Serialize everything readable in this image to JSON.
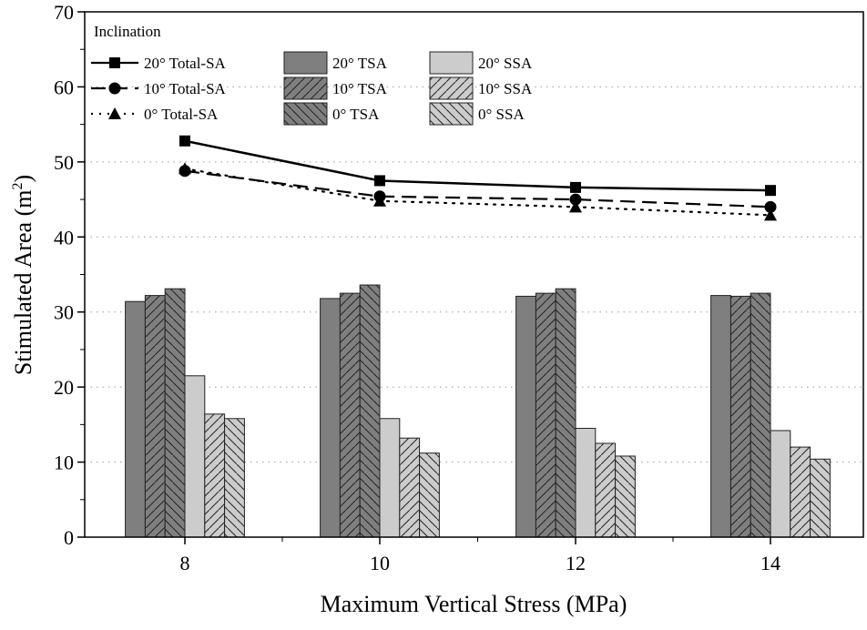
{
  "chart_data": {
    "type": "bar+line",
    "xlabel": "Maximum Vertical Stress (MPa)",
    "ylabel": "Stimulated Area (m",
    "ylabel_sup": "2",
    "ylabel_close": ")",
    "ylim": [
      0,
      70
    ],
    "yticks": [
      "0",
      "10",
      "20",
      "30",
      "40",
      "50",
      "60",
      "70"
    ],
    "categories": [
      "8",
      "10",
      "12",
      "14"
    ],
    "grid": "horizontal dotted",
    "legend": {
      "title": "Inclination",
      "placement": "top-left"
    },
    "bar_series": [
      {
        "name": "20° TSA",
        "values": [
          31.4,
          31.8,
          32.1,
          32.2
        ],
        "color": "#7f7f7f",
        "hatch": "none"
      },
      {
        "name": "10° TSA",
        "values": [
          32.2,
          32.5,
          32.5,
          32.1
        ],
        "color": "#7f7f7f",
        "hatch": "forward"
      },
      {
        "name": "0° TSA",
        "values": [
          33.1,
          33.6,
          33.1,
          32.5
        ],
        "color": "#7f7f7f",
        "hatch": "back"
      },
      {
        "name": "20° SSA",
        "values": [
          21.5,
          15.8,
          14.5,
          14.2
        ],
        "color": "#cccccc",
        "hatch": "none"
      },
      {
        "name": "10° SSA",
        "values": [
          16.4,
          13.2,
          12.5,
          12.0
        ],
        "color": "#cccccc",
        "hatch": "forward"
      },
      {
        "name": "0° SSA",
        "values": [
          15.8,
          11.2,
          10.8,
          10.4
        ],
        "color": "#cccccc",
        "hatch": "back"
      }
    ],
    "line_series": [
      {
        "name": "20° Total-SA",
        "values": [
          52.8,
          47.5,
          46.6,
          46.2
        ],
        "marker": "square",
        "dash": "solid"
      },
      {
        "name": "10° Total-SA",
        "values": [
          48.8,
          45.4,
          45.0,
          44.0
        ],
        "marker": "circle",
        "dash": "dash"
      },
      {
        "name": "0° Total-SA",
        "values": [
          49.1,
          44.8,
          44.0,
          42.9
        ],
        "marker": "triangle",
        "dash": "dot"
      }
    ]
  }
}
